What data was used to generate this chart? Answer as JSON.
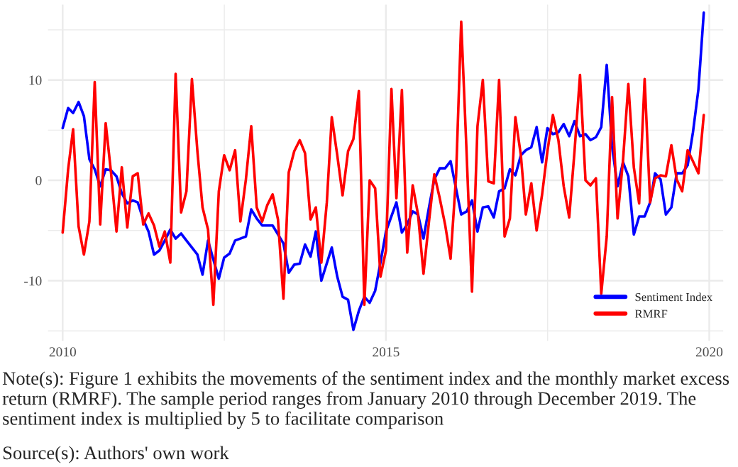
{
  "chart_data": {
    "type": "line",
    "x": [
      "2010-01",
      "2010-02",
      "2010-03",
      "2010-04",
      "2010-05",
      "2010-06",
      "2010-07",
      "2010-08",
      "2010-09",
      "2010-10",
      "2010-11",
      "2010-12",
      "2011-01",
      "2011-02",
      "2011-03",
      "2011-04",
      "2011-05",
      "2011-06",
      "2011-07",
      "2011-08",
      "2011-09",
      "2011-10",
      "2011-11",
      "2011-12",
      "2012-01",
      "2012-02",
      "2012-03",
      "2012-04",
      "2012-05",
      "2012-06",
      "2012-07",
      "2012-08",
      "2012-09",
      "2012-10",
      "2012-11",
      "2012-12",
      "2013-01",
      "2013-02",
      "2013-03",
      "2013-04",
      "2013-05",
      "2013-06",
      "2013-07",
      "2013-08",
      "2013-09",
      "2013-10",
      "2013-11",
      "2013-12",
      "2014-01",
      "2014-02",
      "2014-03",
      "2014-04",
      "2014-05",
      "2014-06",
      "2014-07",
      "2014-08",
      "2014-09",
      "2014-10",
      "2014-11",
      "2014-12",
      "2015-01",
      "2015-02",
      "2015-03",
      "2015-04",
      "2015-05",
      "2015-06",
      "2015-07",
      "2015-08",
      "2015-09",
      "2015-10",
      "2015-11",
      "2015-12",
      "2016-01",
      "2016-02",
      "2016-03",
      "2016-04",
      "2016-05",
      "2016-06",
      "2016-07",
      "2016-08",
      "2016-09",
      "2016-10",
      "2016-11",
      "2016-12",
      "2017-01",
      "2017-02",
      "2017-03",
      "2017-04",
      "2017-05",
      "2017-06",
      "2017-07",
      "2017-08",
      "2017-09",
      "2017-10",
      "2017-11",
      "2017-12",
      "2018-01",
      "2018-02",
      "2018-03",
      "2018-04",
      "2018-05",
      "2018-06",
      "2018-07",
      "2018-08",
      "2018-09",
      "2018-10",
      "2018-11",
      "2018-12",
      "2019-01",
      "2019-02",
      "2019-03",
      "2019-04",
      "2019-05",
      "2019-06",
      "2019-07",
      "2019-08",
      "2019-09",
      "2019-10",
      "2019-11",
      "2019-12"
    ],
    "series": [
      {
        "name": "Sentiment Index",
        "color": "#0000ff",
        "x": [
          "2010-01",
          "2010-02",
          "2010-03",
          "2010-04",
          "2010-05",
          "2010-06",
          "2010-07",
          "2010-08",
          "2010-09",
          "2010-10",
          "2010-11",
          "2010-12",
          "2011-01",
          "2011-02",
          "2011-03",
          "2011-04",
          "2011-05",
          "2011-06",
          "2011-07",
          "2011-08",
          "2011-09",
          "2011-10",
          "2011-11",
          "2011-12",
          "2012-02",
          "2012-03",
          "2012-04",
          "2012-06",
          "2012-07",
          "2012-08",
          "2012-09",
          "2012-10",
          "2012-11",
          "2012-12",
          "2013-01",
          "2013-02",
          "2013-04",
          "2013-06",
          "2013-07",
          "2013-08",
          "2013-09",
          "2013-10",
          "2013-11",
          "2013-12",
          "2014-01",
          "2014-03",
          "2014-04",
          "2014-05",
          "2014-06",
          "2014-07",
          "2014-08",
          "2014-09",
          "2014-10",
          "2014-11",
          "2014-12",
          "2015-01",
          "2015-03",
          "2015-04",
          "2015-05",
          "2015-06",
          "2015-07",
          "2015-08",
          "2015-09",
          "2015-10",
          "2015-11",
          "2015-12",
          "2016-01",
          "2016-03",
          "2016-04",
          "2016-05",
          "2016-06",
          "2016-07",
          "2016-08",
          "2016-09",
          "2016-10",
          "2016-11",
          "2016-12",
          "2017-01",
          "2017-02",
          "2017-03",
          "2017-04",
          "2017-05",
          "2017-06",
          "2017-07",
          "2017-08",
          "2017-09",
          "2017-10",
          "2017-11",
          "2017-12",
          "2018-01",
          "2018-02",
          "2018-03",
          "2018-04",
          "2018-05",
          "2018-06",
          "2018-07",
          "2018-08",
          "2018-09",
          "2018-10",
          "2018-11",
          "2018-12",
          "2019-01",
          "2019-02",
          "2019-03",
          "2019-04",
          "2019-05",
          "2019-06",
          "2019-07",
          "2019-08",
          "2019-09",
          "2019-10",
          "2019-11",
          "2019-12"
        ],
        "values": [
          5.2,
          7.2,
          6.7,
          7.8,
          6.4,
          2.1,
          1.1,
          -0.6,
          1.1,
          1.0,
          0.4,
          -1.3,
          -2.3,
          -2.0,
          -2.2,
          -3.9,
          -5.1,
          -7.4,
          -7.0,
          -6.0,
          -4.9,
          -5.8,
          -5.3,
          -6.0,
          -7.4,
          -9.4,
          -6.0,
          -9.8,
          -7.7,
          -7.3,
          -6.0,
          -5.8,
          -5.6,
          -2.9,
          -3.8,
          -4.5,
          -4.5,
          -6.3,
          -9.2,
          -8.4,
          -8.3,
          -6.4,
          -7.6,
          -5.1,
          -10.0,
          -6.7,
          -9.6,
          -11.6,
          -11.9,
          -14.9,
          -13.0,
          -11.6,
          -12.2,
          -11.0,
          -8.2,
          -5.1,
          -2.2,
          -5.2,
          -4.4,
          -3.1,
          -3.4,
          -5.8,
          -2.7,
          0.1,
          1.2,
          1.2,
          1.9,
          -3.4,
          -3.1,
          -2.0,
          -5.1,
          -2.7,
          -2.6,
          -3.7,
          -1.1,
          -0.8,
          1.1,
          0.5,
          2.5,
          3.0,
          3.3,
          5.3,
          1.8,
          5.2,
          4.6,
          4.8,
          5.6,
          4.4,
          5.9,
          4.4,
          4.6,
          4.0,
          4.3,
          5.3,
          11.5,
          3.4,
          -0.6,
          1.8,
          0.4,
          -5.4,
          -3.6,
          -3.6,
          -2.2,
          0.7,
          0.1,
          -3.4,
          -2.7,
          0.7,
          0.7,
          1.5,
          4.8,
          9.1,
          16.7
        ]
      },
      {
        "name": "RMRF",
        "color": "#ff0000",
        "values": [
          -5.2,
          1.1,
          5.1,
          -4.6,
          -7.4,
          -4.1,
          9.8,
          -4.4,
          5.7,
          0.8,
          -5.1,
          1.3,
          -4.7,
          0.4,
          0.7,
          -4.4,
          -3.3,
          -4.5,
          -6.6,
          -5.1,
          -8.2,
          10.6,
          -3.2,
          -1.1,
          10.1,
          2.9,
          -2.7,
          -4.9,
          -12.4,
          -1.1,
          2.5,
          1.0,
          3.0,
          -4.1,
          0.1,
          5.4,
          -2.7,
          -4.1,
          -2.5,
          -1.4,
          -3.9,
          -11.8,
          0.8,
          2.9,
          4.0,
          2.7,
          -3.9,
          -2.7,
          -8.2,
          -2.2,
          6.3,
          2.5,
          -1.5,
          2.9,
          4.1,
          8.9,
          -12.4,
          0.0,
          -0.8,
          -9.6,
          -7.0,
          9.1,
          -1.8,
          9.0,
          -7.2,
          -0.5,
          -3.4,
          -9.3,
          -4.1,
          0.6,
          -1.8,
          -4.4,
          -7.8,
          0.4,
          15.8,
          2.5,
          -11.1,
          5.4,
          10.0,
          -0.1,
          -0.3,
          10.0,
          -5.6,
          -3.8,
          6.3,
          2.5,
          -3.4,
          -0.3,
          -5.0,
          -1.4,
          2.9,
          6.5,
          4.0,
          -0.6,
          -3.7,
          2.9,
          10.5,
          0.0,
          -0.5,
          0.2,
          -11.3,
          -5.6,
          8.3,
          -3.8,
          2.0,
          9.6,
          1.3,
          -2.3,
          10.1,
          -2.2,
          0.2,
          0.5,
          0.4,
          3.5,
          0.1,
          -1.1,
          3.0,
          1.9,
          0.7,
          6.5
        ]
      }
    ],
    "xlim": [
      "2009-10-10",
      "2020-03-20"
    ],
    "xticks": [
      {
        "value": "2010-01-01",
        "label": "2010"
      },
      {
        "value": "2015-01-01",
        "label": "2015"
      },
      {
        "value": "2020-01-01",
        "label": "2020"
      }
    ],
    "ylim": [
      -16,
      17.5
    ],
    "yticks": [
      -10,
      0,
      10
    ],
    "grid": true,
    "legend": "bottom right",
    "line_style": "solid",
    "marker": "none",
    "annotations": [
      "Note(s): Figure 1 exhibits the movements of the sentiment index and the monthly market excess return (RMRF). The sample period ranges from January 2010 through December 2019. The sentiment index is multiplied by 5 to facilitate comparison",
      "Source(s): Authors' own work"
    ]
  }
}
